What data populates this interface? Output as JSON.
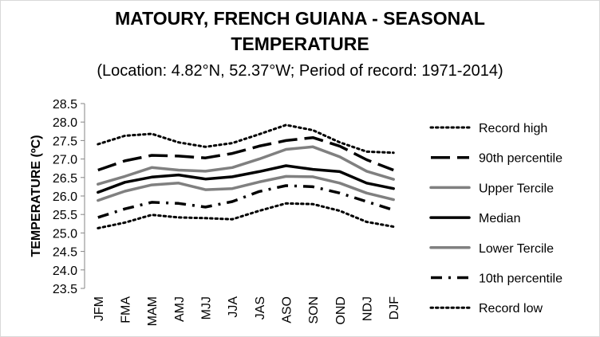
{
  "chart_data": {
    "type": "line",
    "title_line1": "MATOURY, FRENCH GUIANA - SEASONAL",
    "title_line2": "TEMPERATURE",
    "subtitle": "(Location: 4.82°N, 52.37°W; Period of record: 1971-2014)",
    "ylabel": "TEMPERATURE (ºC)",
    "xlabel": "",
    "ylim": [
      23.5,
      28.5
    ],
    "yticks": [
      "23.5",
      "24.0",
      "24.5",
      "25.0",
      "25.5",
      "26.0",
      "26.5",
      "27.0",
      "27.5",
      "28.0",
      "28.5"
    ],
    "ytick_values": [
      23.5,
      24.0,
      24.5,
      25.0,
      25.5,
      26.0,
      26.5,
      27.0,
      27.5,
      28.0,
      28.5
    ],
    "categories": [
      "JFM",
      "FMA",
      "MAM",
      "AMJ",
      "MJJ",
      "JJA",
      "JAS",
      "ASO",
      "SON",
      "OND",
      "NDJ",
      "DJF"
    ],
    "grid": false,
    "legend_position": "right",
    "series": [
      {
        "name": "Record high",
        "style": "dotted",
        "color": "#000000",
        "values": [
          27.4,
          27.63,
          27.68,
          27.45,
          27.33,
          27.43,
          27.67,
          27.92,
          27.78,
          27.45,
          27.2,
          27.17
        ]
      },
      {
        "name": "90th percentile",
        "style": "longdash",
        "color": "#000000",
        "values": [
          26.7,
          26.95,
          27.1,
          27.08,
          27.03,
          27.15,
          27.35,
          27.5,
          27.58,
          27.35,
          26.98,
          26.7
        ]
      },
      {
        "name": "Upper Tercile",
        "style": "solid",
        "color": "#808080",
        "values": [
          26.32,
          26.53,
          26.77,
          26.7,
          26.67,
          26.77,
          27.0,
          27.26,
          27.33,
          27.06,
          26.67,
          26.45
        ]
      },
      {
        "name": "Median",
        "style": "solid",
        "color": "#000000",
        "values": [
          26.1,
          26.37,
          26.51,
          26.57,
          26.46,
          26.52,
          26.66,
          26.82,
          26.72,
          26.66,
          26.35,
          26.2
        ]
      },
      {
        "name": "Lower Tercile",
        "style": "solid",
        "color": "#808080",
        "values": [
          25.88,
          26.13,
          26.3,
          26.35,
          26.17,
          26.2,
          26.38,
          26.53,
          26.52,
          26.35,
          26.08,
          25.9
        ]
      },
      {
        "name": "10th percentile",
        "style": "dashdot",
        "color": "#000000",
        "values": [
          25.42,
          25.65,
          25.83,
          25.8,
          25.7,
          25.85,
          26.12,
          26.28,
          26.25,
          26.08,
          25.85,
          25.62
        ]
      },
      {
        "name": "Record low",
        "style": "dotted",
        "color": "#000000",
        "values": [
          25.13,
          25.28,
          25.49,
          25.42,
          25.4,
          25.37,
          25.6,
          25.8,
          25.78,
          25.6,
          25.3,
          25.17
        ]
      }
    ]
  }
}
